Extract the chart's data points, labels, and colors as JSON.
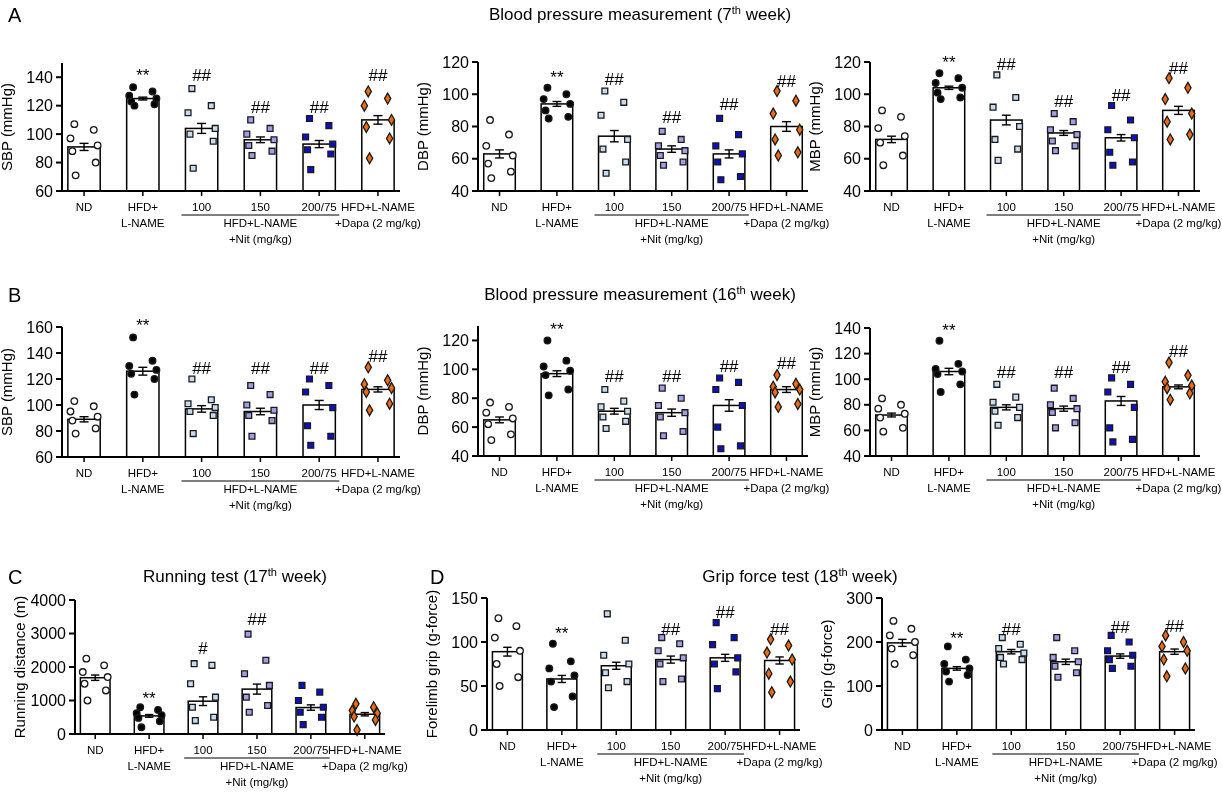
{
  "chart_data": [
    {
      "type": "bar",
      "ylabel": "SBP (mmHg)",
      "categories": [
        "ND",
        "HFD+\nL-NAME",
        "100",
        "150",
        "200/75",
        "HFD+L-NAME\n+Dapa (2 mg/kg)"
      ],
      "ylim": [
        60,
        150
      ],
      "yticks": [
        60,
        80,
        100,
        120,
        140
      ],
      "series": [
        {
          "color": "#ffffff",
          "values": [
            91,
            125,
            104,
            96,
            93,
            110
          ],
          "errors": [
            2.5,
            1,
            3.5,
            2,
            2.5,
            3
          ]
        },
        {
          "type": "scatter",
          "marker": "circle",
          "color": "#ffffff",
          "x": [
            "ND",
            "ND",
            "ND",
            "ND",
            "ND",
            "ND",
            "ND"
          ],
          "values": [
            107,
            103,
            97,
            92,
            88,
            80,
            71
          ]
        },
        {
          "type": "scatter",
          "marker": "circle",
          "color": "#000000",
          "x": [
            "HFD+\nL-NAME",
            "HFD+\nL-NAME",
            "HFD+\nL-NAME",
            "HFD+\nL-NAME",
            "HFD+\nL-NAME",
            "HFD+\nL-NAME",
            "HFD+\nL-NAME"
          ],
          "values": [
            133,
            130,
            127,
            125,
            123,
            121,
            120
          ]
        },
        {
          "type": "scatter",
          "marker": "square",
          "color": "#c6dcf0",
          "x": [
            "100",
            "100",
            "100",
            "100",
            "100",
            "100",
            "100"
          ],
          "values": [
            132,
            120,
            115,
            104,
            100,
            95,
            76
          ]
        },
        {
          "type": "scatter",
          "marker": "square",
          "color": "#9f9fe8",
          "x": [
            "150",
            "150",
            "150",
            "150",
            "150",
            "150",
            "150"
          ],
          "values": [
            110,
            104,
            100,
            96,
            92,
            88,
            85
          ]
        },
        {
          "type": "scatter",
          "marker": "square",
          "color": "#0a10c8",
          "x": [
            "200/75",
            "200/75",
            "200/75",
            "200/75",
            "200/75",
            "200/75",
            "200/75"
          ],
          "values": [
            111,
            106,
            98,
            93,
            89,
            86,
            75
          ]
        },
        {
          "type": "scatter",
          "marker": "diamond",
          "color": "#f26a10",
          "x": [
            "HFD+L-NAME\n+Dapa (2 mg/kg)",
            "HFD+L-NAME\n+Dapa (2 mg/kg)",
            "HFD+L-NAME\n+Dapa (2 mg/kg)",
            "HFD+L-NAME\n+Dapa (2 mg/kg)",
            "HFD+L-NAME\n+Dapa (2 mg/kg)",
            "HFD+L-NAME\n+Dapa (2 mg/kg)",
            "HFD+L-NAME\n+Dapa (2 mg/kg)"
          ],
          "values": [
            130,
            125,
            120,
            110,
            105,
            97,
            83
          ]
        }
      ],
      "annotations": [
        "HFD+L-NAME\n+Nit (mg/kg)",
        "**",
        "##",
        "##",
        "##",
        "##",
        "A"
      ]
    },
    {
      "type": "bar",
      "title": "Blood pressure measurement (7$^{th}$ week)",
      "ylabel": "DBP (mmHg)",
      "categories": [
        "ND",
        "HFD+\nL-NAME",
        "100",
        "150",
        "200/75",
        "HFD+L-NAME\n+Dapa (2 mg/kg)"
      ],
      "ylim": [
        40,
        120
      ],
      "yticks": [
        40,
        60,
        80,
        100,
        120
      ],
      "series": [
        {
          "color": "#ffffff",
          "values": [
            63,
            94,
            74,
            66,
            63,
            80
          ],
          "errors": [
            2.5,
            1.5,
            3.5,
            2,
            2.5,
            3
          ]
        },
        {
          "type": "scatter",
          "marker": "circle",
          "color": "#ffffff",
          "x": [
            "ND",
            "ND",
            "ND",
            "ND",
            "ND",
            "ND",
            "ND"
          ],
          "values": [
            84,
            75,
            68,
            62,
            57,
            52,
            48
          ]
        },
        {
          "type": "scatter",
          "marker": "circle",
          "color": "#000000",
          "x": [
            "HFD+\nL-NAME",
            "HFD+\nL-NAME",
            "HFD+\nL-NAME",
            "HFD+\nL-NAME",
            "HFD+\nL-NAME",
            "HFD+\nL-NAME",
            "HFD+\nL-NAME"
          ],
          "values": [
            104,
            100,
            97,
            94,
            90,
            86,
            85
          ]
        },
        {
          "type": "scatter",
          "marker": "square",
          "color": "#c6dcf0",
          "x": [
            "100",
            "100",
            "100",
            "100",
            "100",
            "100",
            "100"
          ],
          "values": [
            102,
            95,
            87,
            72,
            66,
            58,
            51
          ]
        },
        {
          "type": "scatter",
          "marker": "square",
          "color": "#9f9fe8",
          "x": [
            "150",
            "150",
            "150",
            "150",
            "150",
            "150",
            "150"
          ],
          "values": [
            77,
            72,
            68,
            65,
            62,
            58,
            56
          ]
        },
        {
          "type": "scatter",
          "marker": "square",
          "color": "#0a10c8",
          "x": [
            "200/75",
            "200/75",
            "200/75",
            "200/75",
            "200/75",
            "200/75",
            "200/75"
          ],
          "values": [
            85,
            75,
            68,
            63,
            58,
            49,
            47
          ]
        },
        {
          "type": "scatter",
          "marker": "diamond",
          "color": "#f26a10",
          "x": [
            "HFD+L-NAME\n+Dapa (2 mg/kg)",
            "HFD+L-NAME\n+Dapa (2 mg/kg)",
            "HFD+L-NAME\n+Dapa (2 mg/kg)",
            "HFD+L-NAME\n+Dapa (2 mg/kg)",
            "HFD+L-NAME\n+Dapa (2 mg/kg)",
            "HFD+L-NAME\n+Dapa (2 mg/kg)",
            "HFD+L-NAME\n+Dapa (2 mg/kg)"
          ],
          "values": [
            102,
            96,
            88,
            78,
            72,
            64,
            62
          ]
        }
      ],
      "annotations": [
        "HFD+L-NAME\n+Nit (mg/kg)",
        "**",
        "##",
        "##",
        "##",
        "##"
      ]
    },
    {
      "type": "bar",
      "ylabel": "MBP (mmHg)",
      "categories": [
        "ND",
        "HFD+\nL-NAME",
        "100",
        "150",
        "200/75",
        "HFD+L-NAME\n+Dapa (2 mg/kg)"
      ],
      "ylim": [
        40,
        120
      ],
      "yticks": [
        40,
        60,
        80,
        100,
        120
      ],
      "series": [
        {
          "color": "#ffffff",
          "values": [
            72,
            104,
            84,
            76,
            73,
            90
          ],
          "errors": [
            2,
            1,
            3,
            1.5,
            2,
            2.5
          ]
        },
        {
          "type": "scatter",
          "marker": "circle",
          "color": "#ffffff",
          "x": [
            "ND",
            "ND",
            "ND",
            "ND",
            "ND",
            "ND",
            "ND"
          ],
          "values": [
            90,
            86,
            79,
            74,
            70,
            62,
            56
          ]
        },
        {
          "type": "scatter",
          "marker": "circle",
          "color": "#000000",
          "x": [
            "HFD+\nL-NAME",
            "HFD+\nL-NAME",
            "HFD+\nL-NAME",
            "HFD+\nL-NAME",
            "HFD+\nL-NAME",
            "HFD+\nL-NAME",
            "HFD+\nL-NAME"
          ],
          "values": [
            113,
            110,
            107,
            104,
            101,
            98,
            97
          ]
        },
        {
          "type": "scatter",
          "marker": "square",
          "color": "#c6dcf0",
          "x": [
            "100",
            "100",
            "100",
            "100",
            "100",
            "100",
            "100"
          ],
          "values": [
            112,
            98,
            92,
            80,
            72,
            66,
            59
          ]
        },
        {
          "type": "scatter",
          "marker": "square",
          "color": "#9f9fe8",
          "x": [
            "150",
            "150",
            "150",
            "150",
            "150",
            "150",
            "150"
          ],
          "values": [
            88,
            83,
            78,
            75,
            71,
            68,
            65
          ]
        },
        {
          "type": "scatter",
          "marker": "square",
          "color": "#0a10c8",
          "x": [
            "200/75",
            "200/75",
            "200/75",
            "200/75",
            "200/75",
            "200/75",
            "200/75"
          ],
          "values": [
            93,
            84,
            78,
            73,
            64,
            58,
            56
          ]
        },
        {
          "type": "scatter",
          "marker": "diamond",
          "color": "#f26a10",
          "x": [
            "HFD+L-NAME\n+Dapa (2 mg/kg)",
            "HFD+L-NAME\n+Dapa (2 mg/kg)",
            "HFD+L-NAME\n+Dapa (2 mg/kg)",
            "HFD+L-NAME\n+Dapa (2 mg/kg)",
            "HFD+L-NAME\n+Dapa (2 mg/kg)",
            "HFD+L-NAME\n+Dapa (2 mg/kg)",
            "HFD+L-NAME\n+Dapa (2 mg/kg)"
          ],
          "values": [
            110,
            104,
            97,
            88,
            83,
            75,
            72
          ]
        }
      ],
      "annotations": [
        "HFD+L-NAME\n+Nit (mg/kg)",
        "**",
        "##",
        "##",
        "##",
        "##"
      ]
    },
    {
      "type": "bar",
      "ylabel": "SBP (mmHg)",
      "categories": [
        "ND",
        "HFD+\nL-NAME",
        "100",
        "150",
        "200/75",
        "HFD+L-NAME\n+Dapa (2 mg/kg)"
      ],
      "ylim": [
        60,
        160
      ],
      "yticks": [
        60,
        80,
        100,
        120,
        140,
        160
      ],
      "series": [
        {
          "color": "#ffffff",
          "values": [
            89,
            126,
            97,
            95,
            100,
            112
          ],
          "errors": [
            2,
            3,
            2.5,
            2.5,
            3.5,
            2
          ]
        },
        {
          "type": "scatter",
          "marker": "circle",
          "color": "#ffffff",
          "x": [
            "ND",
            "ND",
            "ND",
            "ND",
            "ND",
            "ND",
            "ND"
          ],
          "values": [
            103,
            99,
            95,
            91,
            88,
            82,
            78
          ]
        },
        {
          "type": "scatter",
          "marker": "circle",
          "color": "#000000",
          "x": [
            "HFD+\nL-NAME",
            "HFD+\nL-NAME",
            "HFD+\nL-NAME",
            "HFD+\nL-NAME",
            "HFD+\nL-NAME",
            "HFD+\nL-NAME",
            "HFD+\nL-NAME"
          ],
          "values": [
            152,
            134,
            130,
            127,
            124,
            120,
            108
          ]
        },
        {
          "type": "scatter",
          "marker": "square",
          "color": "#c6dcf0",
          "x": [
            "100",
            "100",
            "100",
            "100",
            "100",
            "100",
            "100"
          ],
          "values": [
            120,
            104,
            101,
            98,
            95,
            92,
            78
          ]
        },
        {
          "type": "scatter",
          "marker": "square",
          "color": "#9f9fe8",
          "x": [
            "150",
            "150",
            "150",
            "150",
            "150",
            "150",
            "150"
          ],
          "values": [
            115,
            108,
            100,
            96,
            92,
            88,
            76
          ]
        },
        {
          "type": "scatter",
          "marker": "square",
          "color": "#0a10c8",
          "x": [
            "200/75",
            "200/75",
            "200/75",
            "200/75",
            "200/75",
            "200/75",
            "200/75"
          ],
          "values": [
            120,
            115,
            110,
            98,
            84,
            76,
            69
          ]
        },
        {
          "type": "scatter",
          "marker": "diamond",
          "color": "#f26a10",
          "x": [
            "HFD+L-NAME\n+Dapa (2 mg/kg)",
            "HFD+L-NAME\n+Dapa (2 mg/kg)",
            "HFD+L-NAME\n+Dapa (2 mg/kg)",
            "HFD+L-NAME\n+Dapa (2 mg/kg)",
            "HFD+L-NAME\n+Dapa (2 mg/kg)",
            "HFD+L-NAME\n+Dapa (2 mg/kg)",
            "HFD+L-NAME\n+Dapa (2 mg/kg)"
          ],
          "values": [
            129,
            119,
            116,
            113,
            110,
            101,
            96
          ]
        }
      ],
      "annotations": [
        "HFD+L-NAME\n+Nit (mg/kg)",
        "**",
        "##",
        "##",
        "##",
        "##",
        "B"
      ]
    },
    {
      "type": "bar",
      "title": "Blood pressure measurement (16$^{th}$ week)",
      "ylabel": "DBP (mmHg)",
      "categories": [
        "ND",
        "HFD+\nL-NAME",
        "100",
        "150",
        "200/75",
        "HFD+L-NAME\n+Dapa (2 mg/kg)"
      ],
      "ylim": [
        40,
        130
      ],
      "yticks": [
        40,
        60,
        80,
        100,
        120
      ],
      "series": [
        {
          "color": "#ffffff",
          "values": [
            65,
            97,
            71,
            70,
            75,
            86
          ],
          "errors": [
            2,
            2,
            2,
            2.5,
            4,
            2
          ]
        },
        {
          "type": "scatter",
          "marker": "circle",
          "color": "#ffffff",
          "x": [
            "ND",
            "ND",
            "ND",
            "ND",
            "ND",
            "ND",
            "ND"
          ],
          "values": [
            77,
            74,
            70,
            66,
            62,
            55,
            51
          ]
        },
        {
          "type": "scatter",
          "marker": "circle",
          "color": "#000000",
          "x": [
            "HFD+\nL-NAME",
            "HFD+\nL-NAME",
            "HFD+\nL-NAME",
            "HFD+\nL-NAME",
            "HFD+\nL-NAME",
            "HFD+\nL-NAME",
            "HFD+\nL-NAME"
          ],
          "values": [
            120,
            106,
            102,
            99,
            96,
            86,
            82
          ]
        },
        {
          "type": "scatter",
          "marker": "square",
          "color": "#c6dcf0",
          "x": [
            "100",
            "100",
            "100",
            "100",
            "100",
            "100",
            "100"
          ],
          "values": [
            86,
            78,
            74,
            71,
            67,
            64,
            59
          ]
        },
        {
          "type": "scatter",
          "marker": "square",
          "color": "#9f9fe8",
          "x": [
            "150",
            "150",
            "150",
            "150",
            "150",
            "150",
            "150"
          ],
          "values": [
            87,
            80,
            75,
            70,
            67,
            57,
            54
          ]
        },
        {
          "type": "scatter",
          "marker": "square",
          "color": "#0a10c8",
          "x": [
            "200/75",
            "200/75",
            "200/75",
            "200/75",
            "200/75",
            "200/75",
            "200/75"
          ],
          "values": [
            94,
            91,
            86,
            75,
            60,
            47,
            45
          ]
        },
        {
          "type": "scatter",
          "marker": "diamond",
          "color": "#f26a10",
          "x": [
            "HFD+L-NAME\n+Dapa (2 mg/kg)",
            "HFD+L-NAME\n+Dapa (2 mg/kg)",
            "HFD+L-NAME\n+Dapa (2 mg/kg)",
            "HFD+L-NAME\n+Dapa (2 mg/kg)",
            "HFD+L-NAME\n+Dapa (2 mg/kg)",
            "HFD+L-NAME\n+Dapa (2 mg/kg)",
            "HFD+L-NAME\n+Dapa (2 mg/kg)"
          ],
          "values": [
            96,
            90,
            88,
            86,
            84,
            76,
            74
          ]
        }
      ],
      "annotations": [
        "HFD+L-NAME\n+Nit (mg/kg)",
        "**",
        "##",
        "##",
        "##",
        "##"
      ]
    },
    {
      "type": "bar",
      "ylabel": "MBP (mmHg)",
      "categories": [
        "ND",
        "HFD+\nL-NAME",
        "100",
        "150",
        "200/75",
        "HFD+L-NAME\n+Dapa (2 mg/kg)"
      ],
      "ylim": [
        40,
        140
      ],
      "yticks": [
        40,
        60,
        80,
        100,
        120,
        140
      ],
      "series": [
        {
          "color": "#ffffff",
          "values": [
            72,
            106,
            78,
            77,
            83,
            94
          ],
          "errors": [
            1.5,
            2.5,
            2,
            2,
            3.5,
            1.5
          ]
        },
        {
          "type": "scatter",
          "marker": "circle",
          "color": "#ffffff",
          "x": [
            "ND",
            "ND",
            "ND",
            "ND",
            "ND",
            "ND",
            "ND"
          ],
          "values": [
            85,
            80,
            77,
            73,
            70,
            62,
            59
          ]
        },
        {
          "type": "scatter",
          "marker": "circle",
          "color": "#000000",
          "x": [
            "HFD+\nL-NAME",
            "HFD+\nL-NAME",
            "HFD+\nL-NAME",
            "HFD+\nL-NAME",
            "HFD+\nL-NAME",
            "HFD+\nL-NAME",
            "HFD+\nL-NAME"
          ],
          "values": [
            130,
            112,
            108,
            106,
            104,
            96,
            90
          ]
        },
        {
          "type": "scatter",
          "marker": "square",
          "color": "#c6dcf0",
          "x": [
            "100",
            "100",
            "100",
            "100",
            "100",
            "100",
            "100"
          ],
          "values": [
            96,
            86,
            82,
            78,
            75,
            70,
            64
          ]
        },
        {
          "type": "scatter",
          "marker": "square",
          "color": "#9f9fe8",
          "x": [
            "150",
            "150",
            "150",
            "150",
            "150",
            "150",
            "150"
          ],
          "values": [
            93,
            85,
            80,
            77,
            74,
            66,
            62
          ]
        },
        {
          "type": "scatter",
          "marker": "square",
          "color": "#0a10c8",
          "x": [
            "200/75",
            "200/75",
            "200/75",
            "200/75",
            "200/75",
            "200/75",
            "200/75"
          ],
          "values": [
            101,
            96,
            90,
            78,
            62,
            53,
            51
          ]
        },
        {
          "type": "scatter",
          "marker": "diamond",
          "color": "#f26a10",
          "x": [
            "HFD+L-NAME\n+Dapa (2 mg/kg)",
            "HFD+L-NAME\n+Dapa (2 mg/kg)",
            "HFD+L-NAME\n+Dapa (2 mg/kg)",
            "HFD+L-NAME\n+Dapa (2 mg/kg)",
            "HFD+L-NAME\n+Dapa (2 mg/kg)",
            "HFD+L-NAME\n+Dapa (2 mg/kg)",
            "HFD+L-NAME\n+Dapa (2 mg/kg)"
          ],
          "values": [
            113,
            103,
            98,
            95,
            93,
            89,
            84
          ]
        }
      ],
      "annotations": [
        "HFD+L-NAME\n+Nit (mg/kg)",
        "**",
        "##",
        "##",
        "##",
        "##"
      ]
    },
    {
      "type": "bar",
      "title": "Running test (17$^{th}$ week)",
      "ylabel": "Running distance (m)",
      "categories": [
        "ND",
        "HFD+\nL-NAME",
        "100",
        "150",
        "200/75",
        "HFD+L-NAME\n+Dapa (2 mg/kg)"
      ],
      "ylim": [
        0,
        4000
      ],
      "yticks": [
        0,
        1000,
        2000,
        3000,
        4000
      ],
      "series": [
        {
          "color": "#ffffff",
          "values": [
            1680,
            540,
            980,
            1340,
            790,
            590
          ],
          "errors": [
            80,
            40,
            130,
            150,
            80,
            50
          ]
        },
        {
          "type": "scatter",
          "marker": "circle",
          "color": "#ffffff",
          "x": [
            "ND",
            "ND",
            "ND",
            "ND",
            "ND",
            "ND",
            "ND"
          ],
          "values": [
            2250,
            2050,
            1850,
            1700,
            1500,
            1300,
            1000
          ]
        },
        {
          "type": "scatter",
          "marker": "circle",
          "color": "#000000",
          "x": [
            "HFD+\nL-NAME",
            "HFD+\nL-NAME",
            "HFD+\nL-NAME",
            "HFD+\nL-NAME",
            "HFD+\nL-NAME",
            "HFD+\nL-NAME",
            "HFD+\nL-NAME"
          ],
          "values": [
            800,
            720,
            620,
            560,
            480,
            380,
            200
          ]
        },
        {
          "type": "scatter",
          "marker": "square",
          "color": "#c6dcf0",
          "x": [
            "100",
            "100",
            "100",
            "100",
            "100",
            "100",
            "100"
          ],
          "values": [
            2100,
            2050,
            1500,
            1100,
            800,
            500,
            400
          ]
        },
        {
          "type": "scatter",
          "marker": "square",
          "color": "#9f9fe8",
          "x": [
            "150",
            "150",
            "150",
            "150",
            "150",
            "150",
            "150"
          ],
          "values": [
            2980,
            2200,
            1800,
            1450,
            1100,
            850,
            650
          ]
        },
        {
          "type": "scatter",
          "marker": "square",
          "color": "#0a10c8",
          "x": [
            "200/75",
            "200/75",
            "200/75",
            "200/75",
            "200/75",
            "200/75",
            "200/75"
          ],
          "values": [
            1450,
            1250,
            1000,
            800,
            650,
            500,
            280
          ]
        },
        {
          "type": "scatter",
          "marker": "diamond",
          "color": "#f26a10",
          "x": [
            "HFD+L-NAME\n+Dapa (2 mg/kg)",
            "HFD+L-NAME\n+Dapa (2 mg/kg)",
            "HFD+L-NAME\n+Dapa (2 mg/kg)",
            "HFD+L-NAME\n+Dapa (2 mg/kg)",
            "HFD+L-NAME\n+Dapa (2 mg/kg)",
            "HFD+L-NAME\n+Dapa (2 mg/kg)",
            "HFD+L-NAME\n+Dapa (2 mg/kg)"
          ],
          "values": [
            900,
            800,
            700,
            620,
            520,
            420,
            120
          ]
        }
      ],
      "annotations": [
        "HFD+L-NAME\n+Nit (mg/kg)",
        "**",
        "#",
        "##",
        "C"
      ]
    },
    {
      "type": "bar",
      "title": "Grip force test (18$^{th}$ week)",
      "ylabel": "Forelimb grip (g-force)",
      "categories": [
        "ND",
        "HFD+\nL-NAME",
        "100",
        "150",
        "200/75",
        "HFD+L-NAME\n+Dapa (2 mg/kg)"
      ],
      "ylim": [
        0,
        150
      ],
      "yticks": [
        0,
        50,
        100,
        150
      ],
      "series": [
        {
          "color": "#ffffff",
          "values": [
            89,
            58,
            73,
            80,
            82,
            79
          ],
          "errors": [
            5,
            4,
            4,
            4,
            4,
            4
          ]
        },
        {
          "type": "scatter",
          "marker": "circle",
          "color": "#ffffff",
          "x": [
            "ND",
            "ND",
            "ND",
            "ND",
            "ND",
            "ND",
            "ND"
          ],
          "values": [
            127,
            118,
            105,
            90,
            75,
            60,
            50
          ]
        },
        {
          "type": "scatter",
          "marker": "circle",
          "color": "#000000",
          "x": [
            "HFD+\nL-NAME",
            "HFD+\nL-NAME",
            "HFD+\nL-NAME",
            "HFD+\nL-NAME",
            "HFD+\nL-NAME",
            "HFD+\nL-NAME",
            "HFD+\nL-NAME"
          ],
          "values": [
            98,
            78,
            70,
            62,
            55,
            38,
            26
          ]
        },
        {
          "type": "scatter",
          "marker": "square",
          "color": "#c6dcf0",
          "x": [
            "100",
            "100",
            "100",
            "100",
            "100",
            "100",
            "100"
          ],
          "values": [
            132,
            102,
            85,
            75,
            65,
            55,
            48
          ]
        },
        {
          "type": "scatter",
          "marker": "square",
          "color": "#9f9fe8",
          "x": [
            "150",
            "150",
            "150",
            "150",
            "150",
            "150",
            "150"
          ],
          "values": [
            105,
            98,
            90,
            82,
            75,
            58,
            55
          ]
        },
        {
          "type": "scatter",
          "marker": "square",
          "color": "#0a10c8",
          "x": [
            "200/75",
            "200/75",
            "200/75",
            "200/75",
            "200/75",
            "200/75",
            "200/75"
          ],
          "values": [
            122,
            105,
            97,
            82,
            75,
            66,
            47
          ]
        },
        {
          "type": "scatter",
          "marker": "diamond",
          "color": "#f26a10",
          "x": [
            "HFD+L-NAME\n+Dapa (2 mg/kg)",
            "HFD+L-NAME\n+Dapa (2 mg/kg)",
            "HFD+L-NAME\n+Dapa (2 mg/kg)",
            "HFD+L-NAME\n+Dapa (2 mg/kg)",
            "HFD+L-NAME\n+Dapa (2 mg/kg)",
            "HFD+L-NAME\n+Dapa (2 mg/kg)",
            "HFD+L-NAME\n+Dapa (2 mg/kg)"
          ],
          "values": [
            103,
            96,
            88,
            80,
            64,
            55,
            43
          ]
        }
      ],
      "annotations": [
        "HFD+L-NAME\n+Nit (mg/kg)",
        "**",
        "##",
        "##",
        "##",
        "D"
      ]
    },
    {
      "type": "bar",
      "ylabel": "Grip (g-force)",
      "categories": [
        "ND",
        "HFD+\nL-NAME",
        "100",
        "150",
        "200/75",
        "HFD+L-NAME\n+Dapa (2 mg/kg)"
      ],
      "ylim": [
        0,
        300
      ],
      "yticks": [
        0,
        100,
        200,
        300
      ],
      "series": [
        {
          "color": "#ffffff",
          "values": [
            198,
            140,
            178,
            155,
            168,
            178
          ],
          "errors": [
            8,
            4,
            5,
            6,
            5,
            6
          ]
        },
        {
          "type": "scatter",
          "marker": "circle",
          "color": "#ffffff",
          "x": [
            "ND",
            "ND",
            "ND",
            "ND",
            "ND",
            "ND",
            "ND"
          ],
          "values": [
            248,
            230,
            215,
            200,
            185,
            170,
            150
          ]
        },
        {
          "type": "scatter",
          "marker": "circle",
          "color": "#000000",
          "x": [
            "HFD+\nL-NAME",
            "HFD+\nL-NAME",
            "HFD+\nL-NAME",
            "HFD+\nL-NAME",
            "HFD+\nL-NAME",
            "HFD+\nL-NAME",
            "HFD+\nL-NAME"
          ],
          "values": [
            190,
            160,
            150,
            140,
            133,
            125,
            110
          ]
        },
        {
          "type": "scatter",
          "marker": "square",
          "color": "#c6dcf0",
          "x": [
            "100",
            "100",
            "100",
            "100",
            "100",
            "100",
            "100"
          ],
          "values": [
            210,
            195,
            185,
            175,
            165,
            160,
            150
          ]
        },
        {
          "type": "scatter",
          "marker": "square",
          "color": "#9f9fe8",
          "x": [
            "150",
            "150",
            "150",
            "150",
            "150",
            "150",
            "150"
          ],
          "values": [
            210,
            180,
            165,
            155,
            145,
            130,
            120
          ]
        },
        {
          "type": "scatter",
          "marker": "square",
          "color": "#0a10c8",
          "x": [
            "200/75",
            "200/75",
            "200/75",
            "200/75",
            "200/75",
            "200/75",
            "200/75"
          ],
          "values": [
            215,
            200,
            180,
            170,
            160,
            145,
            140
          ]
        },
        {
          "type": "scatter",
          "marker": "diamond",
          "color": "#f26a10",
          "x": [
            "HFD+L-NAME\n+Dapa (2 mg/kg)",
            "HFD+L-NAME\n+Dapa (2 mg/kg)",
            "HFD+L-NAME\n+Dapa (2 mg/kg)",
            "HFD+L-NAME\n+Dapa (2 mg/kg)",
            "HFD+L-NAME\n+Dapa (2 mg/kg)",
            "HFD+L-NAME\n+Dapa (2 mg/kg)",
            "HFD+L-NAME\n+Dapa (2 mg/kg)"
          ],
          "values": [
            215,
            200,
            190,
            180,
            160,
            140,
            122
          ]
        }
      ],
      "annotations": [
        "HFD+L-NAME\n+Nit (mg/kg)",
        "**",
        "##",
        "##",
        "##"
      ]
    }
  ]
}
